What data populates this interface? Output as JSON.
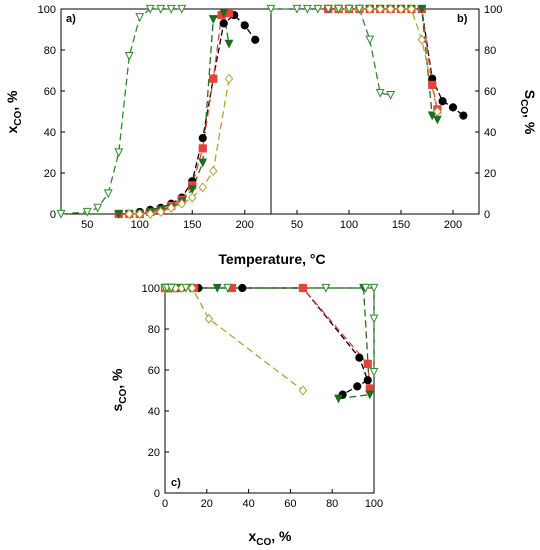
{
  "figure": {
    "x_label_top": "Temperature, °C",
    "y_label_a_main": "x",
    "y_label_a_sub": "CO",
    "y_label_a_suffix": ", %",
    "y_label_b_main": "S",
    "y_label_b_sub": "CO",
    "y_label_b_suffix": ", %",
    "x_label_c_main": "x",
    "x_label_c_sub": "CO",
    "x_label_c_suffix": ", %",
    "y_label_c_main": "s",
    "y_label_c_sub": "CO",
    "y_label_c_suffix": ", %"
  },
  "chart_data": [
    {
      "panel": "a)",
      "type": "line",
      "xlim": [
        25,
        225
      ],
      "ylim": [
        0,
        100
      ],
      "x_ticks": [
        "50",
        "100",
        "150",
        "200"
      ],
      "y_ticks": [
        "0",
        "20",
        "40",
        "60",
        "80",
        "100"
      ],
      "grid": false,
      "series": [
        {
          "marker": "circle",
          "color": "#000000",
          "x": [
            80,
            90,
            100,
            110,
            120,
            130,
            140,
            150,
            160,
            170,
            180,
            190,
            200,
            210
          ],
          "y": [
            0,
            0,
            1,
            2,
            3,
            5,
            8,
            16,
            37,
            66,
            93,
            97,
            92,
            85
          ]
        },
        {
          "marker": "square",
          "color": "#e8413c",
          "x": [
            80,
            90,
            100,
            110,
            120,
            130,
            140,
            150,
            160,
            170,
            178,
            185
          ],
          "y": [
            0,
            0,
            0,
            1,
            2,
            4,
            7,
            14,
            32,
            66,
            97,
            98
          ]
        },
        {
          "marker": "triangle-down-filled",
          "color": "#1f6b1f",
          "x": [
            80,
            90,
            100,
            110,
            120,
            130,
            140,
            150,
            160,
            170,
            180,
            185
          ],
          "y": [
            0,
            0,
            0,
            1,
            2,
            3,
            6,
            12,
            25,
            95,
            98,
            83
          ]
        },
        {
          "marker": "diamond-open",
          "color": "#b5a03a",
          "x": [
            90,
            100,
            110,
            120,
            130,
            140,
            150,
            160,
            170,
            185
          ],
          "y": [
            0,
            0,
            0,
            1,
            3,
            5,
            8,
            13,
            21,
            66
          ]
        },
        {
          "marker": "triangle-down-open",
          "color": "#2e8b2e",
          "x": [
            25,
            50,
            60,
            70,
            80,
            90,
            100,
            110,
            120,
            130,
            140
          ],
          "y": [
            0,
            1,
            3,
            10,
            30,
            77,
            96,
            100,
            100,
            100,
            100
          ]
        }
      ]
    },
    {
      "panel": "b)",
      "type": "line",
      "xlim": [
        25,
        225
      ],
      "ylim": [
        0,
        100
      ],
      "x_ticks": [
        "50",
        "100",
        "150",
        "200"
      ],
      "y_ticks": [
        "0",
        "20",
        "40",
        "60",
        "80",
        "100"
      ],
      "grid": false,
      "series": [
        {
          "marker": "circle",
          "color": "#000000",
          "x": [
            80,
            90,
            100,
            110,
            120,
            130,
            140,
            150,
            160,
            170,
            180,
            190,
            200,
            210
          ],
          "y": [
            100,
            100,
            100,
            100,
            100,
            100,
            100,
            100,
            100,
            100,
            66,
            55,
            52,
            48
          ]
        },
        {
          "marker": "square",
          "color": "#e8413c",
          "x": [
            80,
            90,
            100,
            110,
            120,
            130,
            140,
            150,
            160,
            170,
            180,
            185
          ],
          "y": [
            100,
            100,
            100,
            100,
            100,
            100,
            100,
            100,
            100,
            100,
            63,
            51
          ]
        },
        {
          "marker": "triangle-down-filled",
          "color": "#1f6b1f",
          "x": [
            80,
            90,
            100,
            110,
            120,
            130,
            140,
            150,
            160,
            170,
            180,
            185
          ],
          "y": [
            100,
            100,
            100,
            100,
            100,
            100,
            100,
            100,
            100,
            100,
            48,
            46
          ]
        },
        {
          "marker": "diamond-open",
          "color": "#b5a03a",
          "x": [
            90,
            100,
            110,
            120,
            130,
            140,
            150,
            160,
            170,
            185
          ],
          "y": [
            100,
            100,
            100,
            100,
            100,
            100,
            100,
            100,
            85,
            50
          ]
        },
        {
          "marker": "triangle-down-open",
          "color": "#2e8b2e",
          "x": [
            25,
            50,
            60,
            70,
            80,
            90,
            100,
            110,
            120,
            130,
            140
          ],
          "y": [
            100,
            100,
            100,
            100,
            100,
            100,
            100,
            100,
            85,
            59,
            58
          ]
        }
      ]
    },
    {
      "panel": "c)",
      "type": "line",
      "xlim": [
        0,
        100
      ],
      "ylim": [
        0,
        100
      ],
      "x_ticks": [
        "0",
        "20",
        "40",
        "60",
        "80",
        "100"
      ],
      "y_ticks": [
        "0",
        "20",
        "40",
        "60",
        "80",
        "100"
      ],
      "grid": false,
      "series": [
        {
          "marker": "circle",
          "color": "#000000",
          "x": [
            0,
            1,
            2,
            3,
            5,
            8,
            16,
            37,
            66,
            93,
            97,
            92,
            85
          ],
          "y": [
            100,
            100,
            100,
            100,
            100,
            100,
            100,
            100,
            100,
            66,
            55,
            52,
            48
          ]
        },
        {
          "marker": "square",
          "color": "#e8413c",
          "x": [
            0,
            1,
            2,
            4,
            7,
            14,
            32,
            66,
            97,
            98
          ],
          "y": [
            100,
            100,
            100,
            100,
            100,
            100,
            100,
            100,
            63,
            51
          ]
        },
        {
          "marker": "triangle-down-filled",
          "color": "#1f6b1f",
          "x": [
            0,
            1,
            2,
            3,
            6,
            12,
            25,
            95,
            98,
            83
          ],
          "y": [
            100,
            100,
            100,
            100,
            100,
            100,
            100,
            100,
            48,
            46
          ]
        },
        {
          "marker": "diamond-open",
          "color": "#b5a03a",
          "x": [
            0,
            1,
            3,
            5,
            8,
            13,
            21,
            66
          ],
          "y": [
            100,
            100,
            100,
            100,
            100,
            100,
            85,
            50
          ]
        },
        {
          "marker": "triangle-down-open",
          "color": "#2e8b2e",
          "x": [
            0,
            1,
            3,
            10,
            30,
            77,
            96,
            100,
            100,
            100
          ],
          "y": [
            100,
            100,
            100,
            100,
            100,
            100,
            100,
            100,
            85,
            59
          ]
        }
      ]
    }
  ]
}
